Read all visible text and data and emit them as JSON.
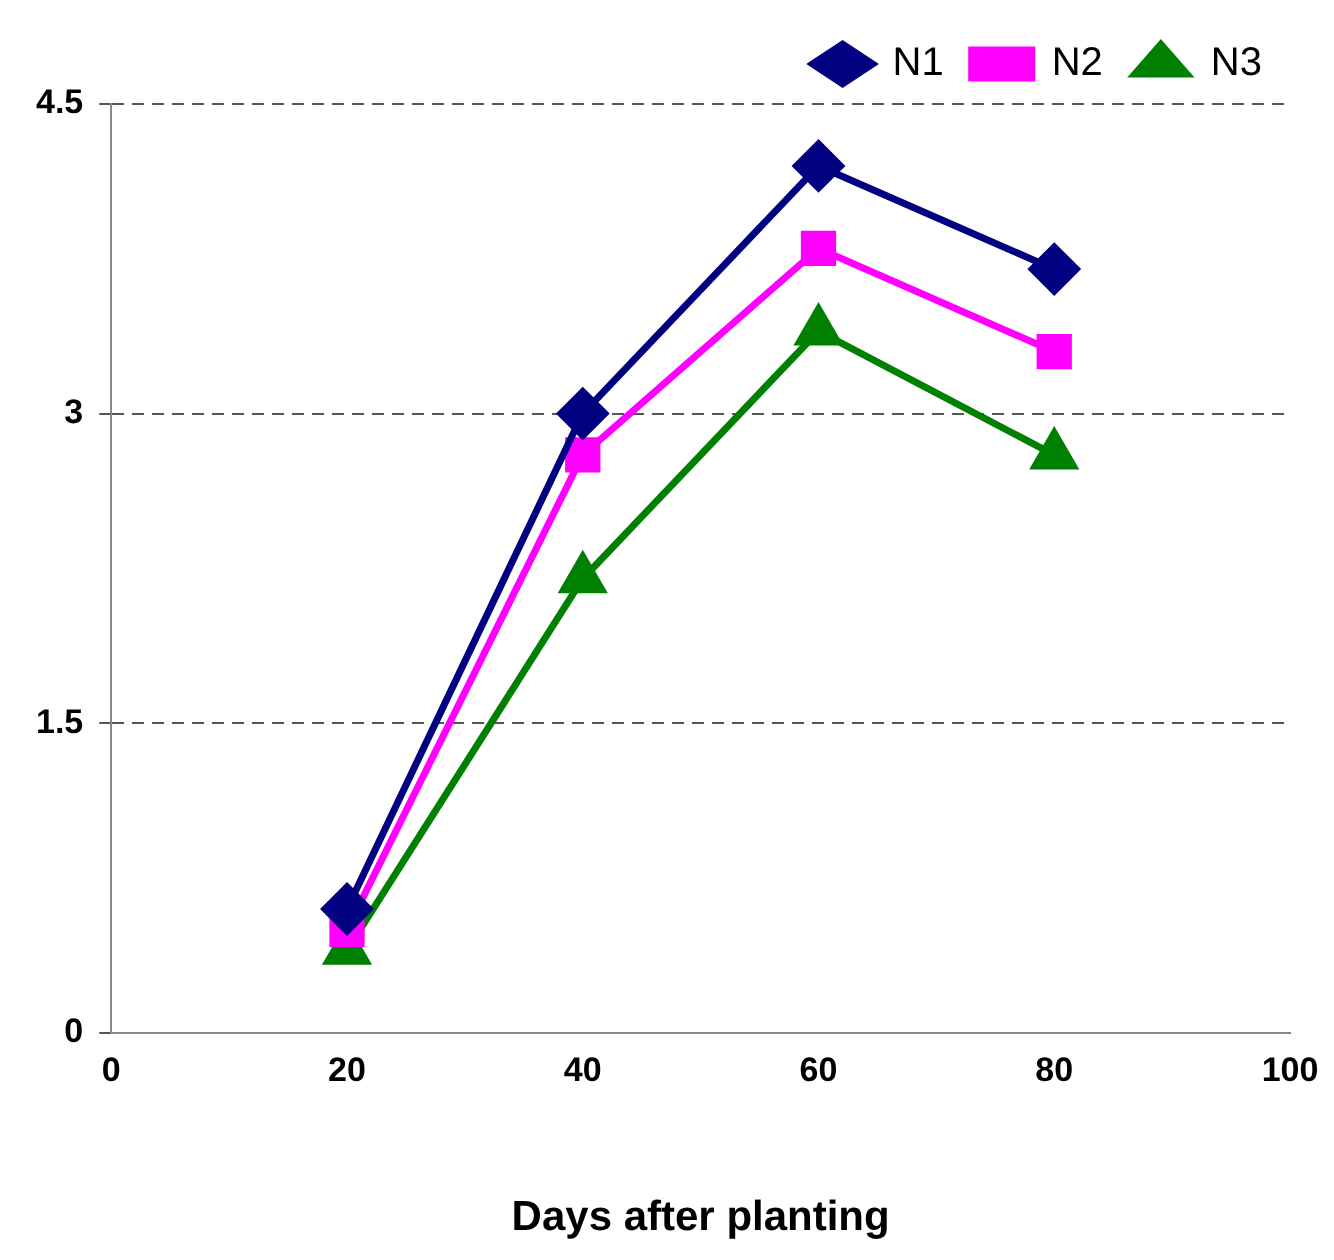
{
  "chart_data": {
    "type": "line",
    "xlabel": "Days after planting",
    "x": [
      20,
      40,
      60,
      80
    ],
    "series": [
      {
        "name": "N1",
        "color": "#000080",
        "marker": "diamond",
        "values": [
          0.6,
          3.0,
          4.2,
          3.7
        ]
      },
      {
        "name": "N2",
        "color": "#ff00ff",
        "marker": "square",
        "values": [
          0.5,
          2.8,
          3.8,
          3.3
        ]
      },
      {
        "name": "N3",
        "color": "#008000",
        "marker": "triangle",
        "values": [
          0.4,
          2.2,
          3.4,
          2.8
        ]
      }
    ],
    "xlim": [
      0,
      100
    ],
    "xticks": [
      0,
      20,
      40,
      60,
      80,
      100
    ],
    "ylim": [
      0,
      4.5
    ],
    "yticks": [
      0,
      1.5,
      3,
      4.5
    ],
    "grid": "y",
    "legend": "top right",
    "line_style": "solid"
  }
}
